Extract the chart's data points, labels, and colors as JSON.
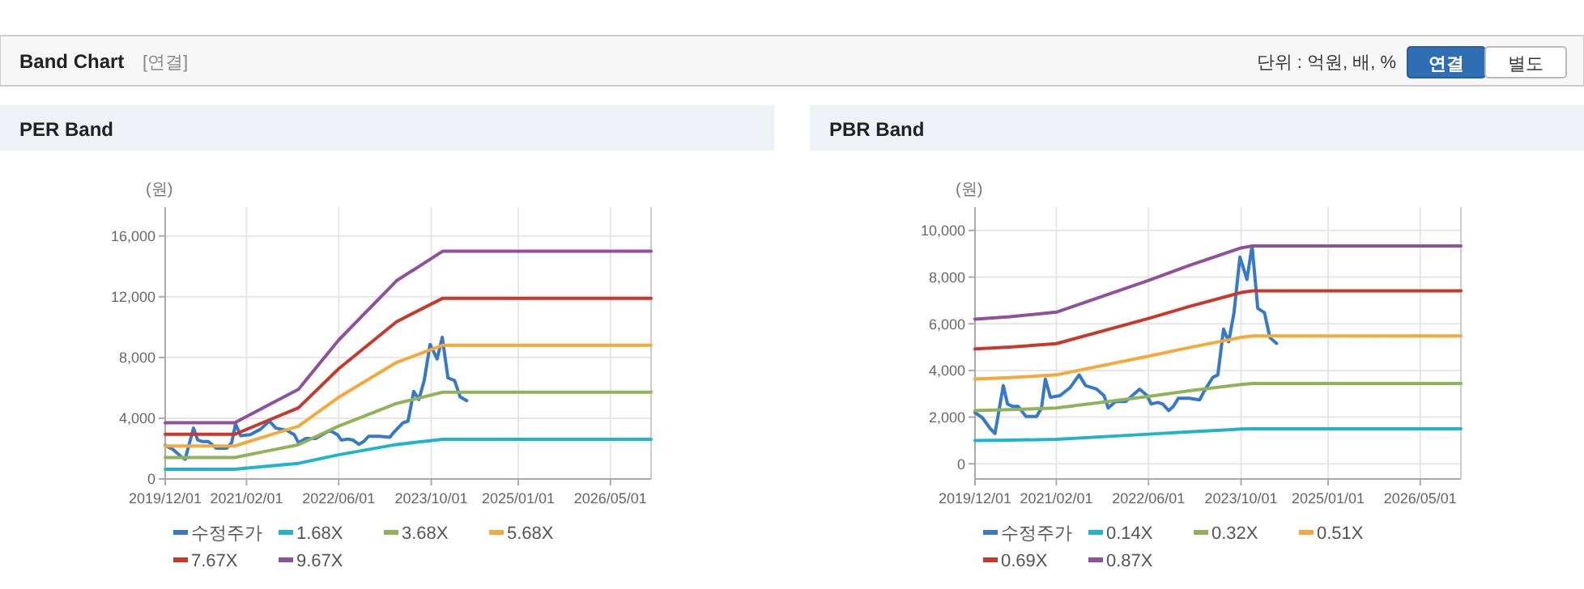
{
  "chart_data": [
    {
      "type": "other",
      "title": "Band Chart",
      "annotations": [
        "[연결]",
        "단위 : 억원, 배, %",
        "연결",
        "별도"
      ]
    },
    {
      "type": "line",
      "title": "PER Band",
      "ylabel": "(원)",
      "xlim": [
        "2019-12-01",
        "2026-12-01"
      ],
      "ylim": [
        0,
        17900
      ],
      "xticks": [
        {
          "value": "2019-12-01",
          "label": "2019/12/01"
        },
        {
          "value": "2021-02-01",
          "label": "2021/02/01"
        },
        {
          "value": "2022-06-01",
          "label": "2022/06/01"
        },
        {
          "value": "2023-10-01",
          "label": "2023/10/01"
        },
        {
          "value": "2025-01-01",
          "label": "2025/01/01"
        },
        {
          "value": "2026-05-01",
          "label": "2026/05/01"
        }
      ],
      "yticks": [
        0,
        {
          "value": 4000,
          "label": "4,000"
        },
        {
          "value": 8000,
          "label": "8,000"
        },
        {
          "value": 12000,
          "label": "12,000"
        },
        {
          "value": 16000,
          "label": "16,000"
        }
      ],
      "grid": true,
      "legend": "bottom",
      "series": [
        {
          "name": "수정주가",
          "color": "#3579c9",
          "x": [
            "2019-12-01",
            "2020-01-10",
            "2020-02-20",
            "2020-03-15",
            "2020-04-28",
            "2020-05-20",
            "2020-06-15",
            "2020-07-15",
            "2020-08-25",
            "2020-10-20",
            "2020-11-15",
            "2020-12-05",
            "2021-01-01",
            "2021-02-20",
            "2021-04-15",
            "2021-06-01",
            "2021-07-05",
            "2021-09-01",
            "2021-10-10",
            "2021-11-01",
            "2021-12-10",
            "2022-02-01",
            "2022-04-15",
            "2022-05-25",
            "2022-06-15",
            "2022-07-20",
            "2022-08-15",
            "2022-09-15",
            "2022-10-10",
            "2022-11-05",
            "2023-01-01",
            "2023-02-25",
            "2023-03-20",
            "2023-05-05",
            "2023-06-01",
            "2023-07-01",
            "2023-07-28",
            "2023-08-25",
            "2023-09-25",
            "2023-11-01",
            "2023-11-28",
            "2023-12-28",
            "2024-02-01",
            "2024-03-01",
            "2024-04-05"
          ],
          "values": [
            2200,
            1960,
            1500,
            1300,
            3350,
            2560,
            2460,
            2460,
            2030,
            2030,
            2390,
            3630,
            2850,
            2920,
            3270,
            3810,
            3350,
            3200,
            2920,
            2390,
            2670,
            2670,
            3200,
            2920,
            2560,
            2630,
            2560,
            2280,
            2460,
            2810,
            2810,
            2740,
            3100,
            3700,
            3810,
            5770,
            5230,
            6480,
            8860,
            7900,
            9330,
            6660,
            6480,
            5410,
            5160
          ]
        },
        {
          "name": "1.68X",
          "color": "#1fb5c9",
          "x": [
            "2019-12-01",
            "2020-12-01",
            "2021-06-01",
            "2021-11-01",
            "2022-06-01",
            "2023-04-01",
            "2023-12-01",
            "2026-12-01"
          ],
          "values": [
            640,
            640,
            850,
            1030,
            1590,
            2270,
            2610,
            2610
          ]
        },
        {
          "name": "3.68X",
          "color": "#8fb457",
          "x": [
            "2019-12-01",
            "2020-12-01",
            "2021-06-01",
            "2021-11-01",
            "2022-06-01",
            "2023-04-01",
            "2023-12-01",
            "2026-12-01"
          ],
          "values": [
            1410,
            1410,
            1870,
            2250,
            3480,
            4970,
            5710,
            5710
          ]
        },
        {
          "name": "5.68X",
          "color": "#f4a93b",
          "x": [
            "2019-12-01",
            "2020-12-01",
            "2021-06-01",
            "2021-11-01",
            "2022-06-01",
            "2023-04-01",
            "2023-12-01",
            "2026-12-01"
          ],
          "values": [
            2170,
            2170,
            2880,
            3470,
            5380,
            7670,
            8810,
            8810
          ]
        },
        {
          "name": "7.67X",
          "color": "#c9392b",
          "x": [
            "2019-12-01",
            "2020-12-01",
            "2021-06-01",
            "2021-11-01",
            "2022-06-01",
            "2023-04-01",
            "2023-12-01",
            "2026-12-01"
          ],
          "values": [
            2940,
            2940,
            3890,
            4680,
            7260,
            10350,
            11900,
            11900
          ]
        },
        {
          "name": "9.67X",
          "color": "#8f509c",
          "x": [
            "2019-12-01",
            "2020-12-01",
            "2021-06-01",
            "2021-11-01",
            "2022-06-01",
            "2023-04-01",
            "2023-12-01",
            "2026-12-01"
          ],
          "values": [
            3700,
            3700,
            4900,
            5900,
            9150,
            13050,
            15000,
            15000
          ]
        }
      ]
    },
    {
      "type": "line",
      "title": "PBR Band",
      "ylabel": "(원)",
      "xlim": [
        "2019-12-01",
        "2026-12-01"
      ],
      "ylim": [
        -650,
        11000
      ],
      "xticks": [
        {
          "value": "2019-12-01",
          "label": "2019/12/01"
        },
        {
          "value": "2021-02-01",
          "label": "2021/02/01"
        },
        {
          "value": "2022-06-01",
          "label": "2022/06/01"
        },
        {
          "value": "2023-10-01",
          "label": "2023/10/01"
        },
        {
          "value": "2025-01-01",
          "label": "2025/01/01"
        },
        {
          "value": "2026-05-01",
          "label": "2026/05/01"
        }
      ],
      "yticks": [
        0,
        {
          "value": 2000,
          "label": "2,000"
        },
        {
          "value": 4000,
          "label": "4,000"
        },
        {
          "value": 6000,
          "label": "6,000"
        },
        {
          "value": 8000,
          "label": "8,000"
        },
        {
          "value": 10000,
          "label": "10,000"
        }
      ],
      "grid": true,
      "legend": "bottom",
      "series": [
        {
          "name": "수정주가",
          "color": "#3579c9",
          "x": [
            "2019-12-01",
            "2020-01-10",
            "2020-02-20",
            "2020-03-15",
            "2020-04-28",
            "2020-05-20",
            "2020-06-15",
            "2020-07-15",
            "2020-08-25",
            "2020-10-20",
            "2020-11-15",
            "2020-12-05",
            "2021-01-01",
            "2021-02-20",
            "2021-04-15",
            "2021-06-01",
            "2021-07-05",
            "2021-09-01",
            "2021-10-10",
            "2021-11-01",
            "2021-12-10",
            "2022-02-01",
            "2022-04-15",
            "2022-05-25",
            "2022-06-15",
            "2022-07-20",
            "2022-08-15",
            "2022-09-15",
            "2022-10-10",
            "2022-11-05",
            "2023-01-01",
            "2023-02-25",
            "2023-03-20",
            "2023-05-05",
            "2023-06-01",
            "2023-07-01",
            "2023-07-28",
            "2023-08-25",
            "2023-09-25",
            "2023-11-01",
            "2023-11-28",
            "2023-12-28",
            "2024-02-01",
            "2024-03-01",
            "2024-04-05"
          ],
          "values": [
            2200,
            1960,
            1500,
            1300,
            3350,
            2560,
            2460,
            2460,
            2030,
            2030,
            2390,
            3630,
            2850,
            2920,
            3270,
            3810,
            3350,
            3200,
            2920,
            2390,
            2670,
            2670,
            3200,
            2920,
            2560,
            2630,
            2560,
            2280,
            2460,
            2810,
            2810,
            2740,
            3100,
            3700,
            3810,
            5770,
            5230,
            6480,
            8860,
            7900,
            9330,
            6660,
            6480,
            5410,
            5160
          ]
        },
        {
          "name": "0.14X",
          "color": "#1fb5c9",
          "x": [
            "2019-12-01",
            "2020-06-01",
            "2021-02-01",
            "2022-06-01",
            "2023-01-01",
            "2023-10-01",
            "2023-12-01",
            "2026-12-01"
          ],
          "values": [
            1000,
            1010,
            1050,
            1270,
            1370,
            1490,
            1500,
            1500
          ]
        },
        {
          "name": "0.32X",
          "color": "#8fb457",
          "x": [
            "2019-12-01",
            "2020-06-01",
            "2021-02-01",
            "2022-06-01",
            "2023-01-01",
            "2023-10-01",
            "2023-12-01",
            "2026-12-01"
          ],
          "values": [
            2280,
            2320,
            2390,
            2890,
            3130,
            3400,
            3440,
            3440
          ]
        },
        {
          "name": "0.51X",
          "color": "#f4a93b",
          "x": [
            "2019-12-01",
            "2020-06-01",
            "2021-02-01",
            "2022-06-01",
            "2023-01-01",
            "2023-10-01",
            "2023-12-01",
            "2026-12-01"
          ],
          "values": [
            3630,
            3690,
            3810,
            4610,
            4980,
            5420,
            5480,
            5480
          ]
        },
        {
          "name": "0.69X",
          "color": "#c9392b",
          "x": [
            "2019-12-01",
            "2020-06-01",
            "2021-02-01",
            "2022-06-01",
            "2023-01-01",
            "2023-10-01",
            "2023-12-01",
            "2026-12-01"
          ],
          "values": [
            4920,
            5000,
            5150,
            6230,
            6740,
            7340,
            7410,
            7410
          ]
        },
        {
          "name": "0.87X",
          "color": "#8f509c",
          "x": [
            "2019-12-01",
            "2020-06-01",
            "2021-02-01",
            "2022-06-01",
            "2023-01-01",
            "2023-10-01",
            "2023-12-01",
            "2026-12-01"
          ],
          "values": [
            6200,
            6300,
            6500,
            7860,
            8500,
            9250,
            9340,
            9340
          ]
        }
      ]
    }
  ]
}
